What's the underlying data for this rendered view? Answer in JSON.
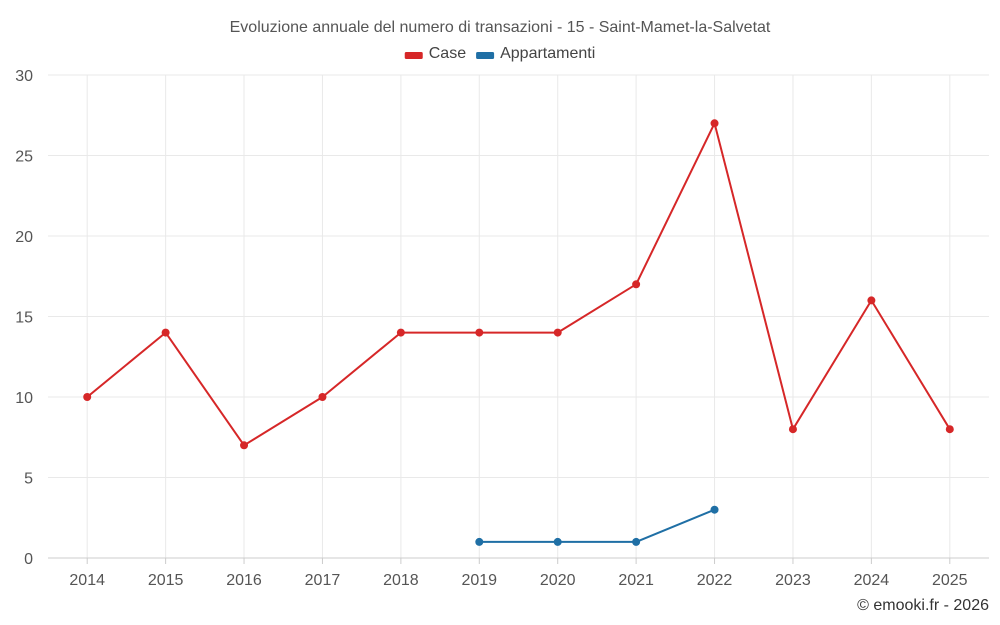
{
  "chart_data": {
    "type": "line",
    "title": "Evoluzione annuale del numero di transazioni - 15 - Saint-Mamet-la-Salvetat",
    "categories": [
      "2014",
      "2015",
      "2016",
      "2017",
      "2018",
      "2019",
      "2020",
      "2021",
      "2022",
      "2023",
      "2024",
      "2025"
    ],
    "ylim": [
      0,
      30
    ],
    "yticks": [
      0,
      5,
      10,
      15,
      20,
      25,
      30
    ],
    "grid": true,
    "legend_position": "top-center",
    "series": [
      {
        "name": "Case",
        "color": "#d62728",
        "values": [
          10,
          14,
          7,
          10,
          14,
          14,
          14,
          17,
          27,
          8,
          16,
          8
        ]
      },
      {
        "name": "Appartamenti",
        "color": "#1f6fa5",
        "values": [
          null,
          null,
          null,
          null,
          null,
          1,
          1,
          1,
          3,
          null,
          null,
          null
        ]
      }
    ],
    "credit": "© emooki.fr - 2026"
  }
}
